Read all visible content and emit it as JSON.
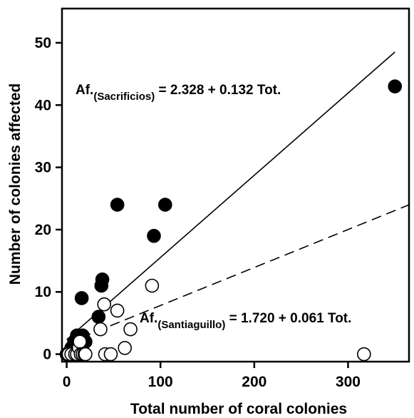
{
  "chart_data": {
    "type": "scatter",
    "xlabel": "Total number of coral colonies",
    "ylabel": "Number of colonies affected",
    "xlim": [
      -5,
      365
    ],
    "ylim": [
      -1.2,
      55.5
    ],
    "xticks": [
      0,
      100,
      200,
      300
    ],
    "yticks": [
      0,
      10,
      20,
      30,
      40,
      50
    ],
    "xtick_labels": [
      "0",
      "100",
      "200",
      "300"
    ],
    "ytick_labels": [
      "0",
      "10",
      "20",
      "30",
      "40",
      "50"
    ],
    "grid": false,
    "series": [
      {
        "site": "Sacrificios",
        "marker": "filled-circle",
        "color": "#000000",
        "points": [
          [
            0,
            0
          ],
          [
            2,
            0
          ],
          [
            4,
            0
          ],
          [
            5,
            1
          ],
          [
            6,
            0
          ],
          [
            8,
            2
          ],
          [
            10,
            0
          ],
          [
            11,
            3
          ],
          [
            12,
            2
          ],
          [
            13,
            0
          ],
          [
            14,
            1
          ],
          [
            15,
            0
          ],
          [
            16,
            9
          ],
          [
            17,
            3
          ],
          [
            18,
            0
          ],
          [
            20,
            2
          ],
          [
            34,
            6
          ],
          [
            37,
            11
          ],
          [
            38,
            12
          ],
          [
            54,
            24
          ],
          [
            93,
            19
          ],
          [
            105,
            24
          ],
          [
            350,
            43
          ]
        ],
        "fit": {
          "intercept": 2.328,
          "slope": 0.132,
          "line": "solid",
          "x_range": [
            0,
            350
          ]
        },
        "equation": {
          "lhs": "Af.",
          "subscript": "(Sacrificios)",
          "rhs": " = 2.328 + 0.132 Tot."
        }
      },
      {
        "site": "Santiaguillo",
        "marker": "open-circle",
        "color": "#000000",
        "points": [
          [
            2,
            0
          ],
          [
            5,
            0
          ],
          [
            9,
            0
          ],
          [
            11,
            0
          ],
          [
            13,
            1
          ],
          [
            14,
            2
          ],
          [
            15,
            0
          ],
          [
            17,
            0
          ],
          [
            19,
            0
          ],
          [
            20,
            0
          ],
          [
            36,
            4
          ],
          [
            40,
            8
          ],
          [
            41,
            0
          ],
          [
            47,
            0
          ],
          [
            54,
            7
          ],
          [
            62,
            1
          ],
          [
            68,
            4
          ],
          [
            91,
            11
          ],
          [
            317,
            0
          ]
        ],
        "fit": {
          "intercept": 1.72,
          "slope": 0.061,
          "line": "dashed",
          "x_range": [
            0,
            365
          ]
        },
        "equation": {
          "lhs": "Af.",
          "subscript": "(Santiaguillo)",
          "rhs": " = 1.720 + 0.061 Tot."
        }
      }
    ]
  }
}
